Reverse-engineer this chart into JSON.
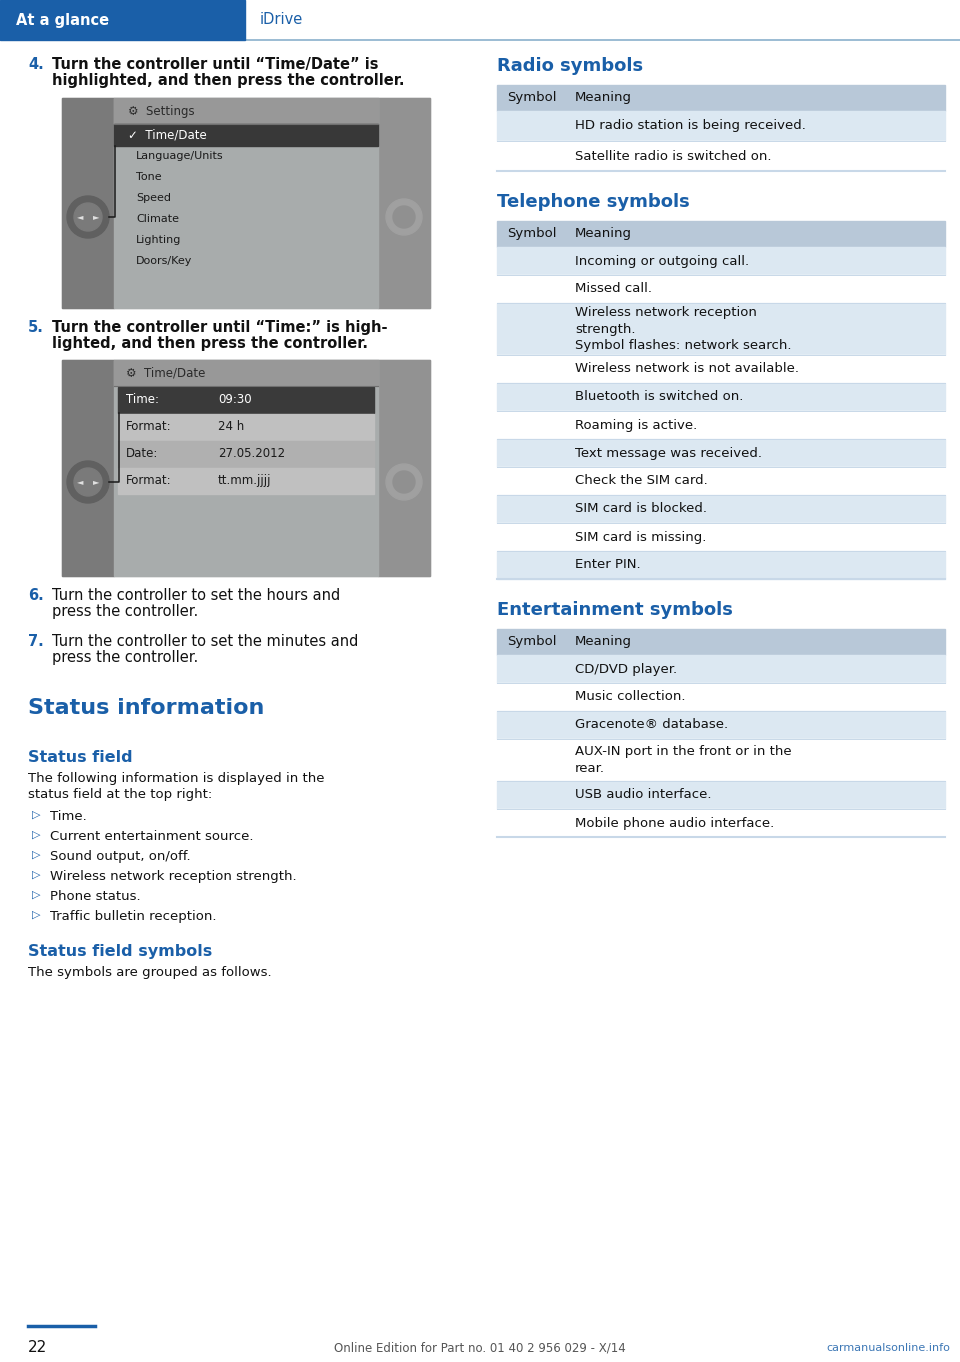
{
  "page_bg": "#ffffff",
  "header_bg": "#1a5fa8",
  "header_tab_text": "At a glance",
  "header_section_text": "iDrive",
  "header_sep_color": "#8ab0cc",
  "section_color": "#1a5fa8",
  "body_color": "#111111",
  "table_hdr_bg": "#b8c8d8",
  "table_row_alt_bg": "#dce8f2",
  "table_row_bg": "#ffffff",
  "table_border": "#c8d8e8",
  "screen_bg": "#a8aaaa",
  "screen_side_bg": "#808080",
  "screen_title_bg": "#989898",
  "screen_sel_bg": "#3a3a3a",
  "screen_unsel_bg": "#b8b8b8",
  "screen_text_dark": "#1a1a1a",
  "page_num": "22",
  "footer_text": "Online Edition for Part no. 01 40 2 956 029 - X/14",
  "watermark": "carmanualsonline.info",
  "step4_text1": "Turn the controller until “Time/Date” is",
  "step4_text2": "highlighted, and then press the controller.",
  "step5_text1": "Turn the controller until “Time:” is high-",
  "step5_text2": "lighted, and then press the controller.",
  "step6_text1": "Turn the controller to set the hours and",
  "step6_text2": "press the controller.",
  "step7_text1": "Turn the controller to set the minutes and",
  "step7_text2": "press the controller.",
  "screen1_menu": [
    "Time/Date",
    "Language/Units",
    "Tone",
    "Speed",
    "Climate",
    "Lighting",
    "Doors/Key"
  ],
  "screen2_rows": [
    [
      "Time:",
      "09:30"
    ],
    [
      "Format:",
      "24 h"
    ],
    [
      "Date:",
      "27.05.2012"
    ],
    [
      "Format:",
      "tt.mm.jjjj"
    ]
  ],
  "status_bullets": [
    "Time.",
    "Current entertainment source.",
    "Sound output, on/off.",
    "Wireless network reception strength.",
    "Phone status.",
    "Traffic bulletin reception."
  ],
  "radio_rows": [
    [
      "HD radio station is being received."
    ],
    [
      "Satellite radio is switched on."
    ]
  ],
  "tel_rows_text": [
    [
      "Incoming or outgoing call.",
      28
    ],
    [
      "Missed call.",
      28
    ],
    [
      "Wireless network reception\nstrength.\nSymbol flashes: network search.",
      52
    ],
    [
      "Wireless network is not available.",
      28
    ],
    [
      "Bluetooth is switched on.",
      28
    ],
    [
      "Roaming is active.",
      28
    ],
    [
      "Text message was received.",
      28
    ],
    [
      "Check the SIM card.",
      28
    ],
    [
      "SIM card is blocked.",
      28
    ],
    [
      "SIM card is missing.",
      28
    ],
    [
      "Enter PIN.",
      28
    ]
  ],
  "ent_rows_text": [
    [
      "CD/DVD player.",
      28
    ],
    [
      "Music collection.",
      28
    ],
    [
      "Gracenote® database.",
      28
    ],
    [
      "AUX-IN port in the front or in the\nrear.",
      42
    ],
    [
      "USB audio interface.",
      28
    ],
    [
      "Mobile phone audio interface.",
      28
    ]
  ]
}
